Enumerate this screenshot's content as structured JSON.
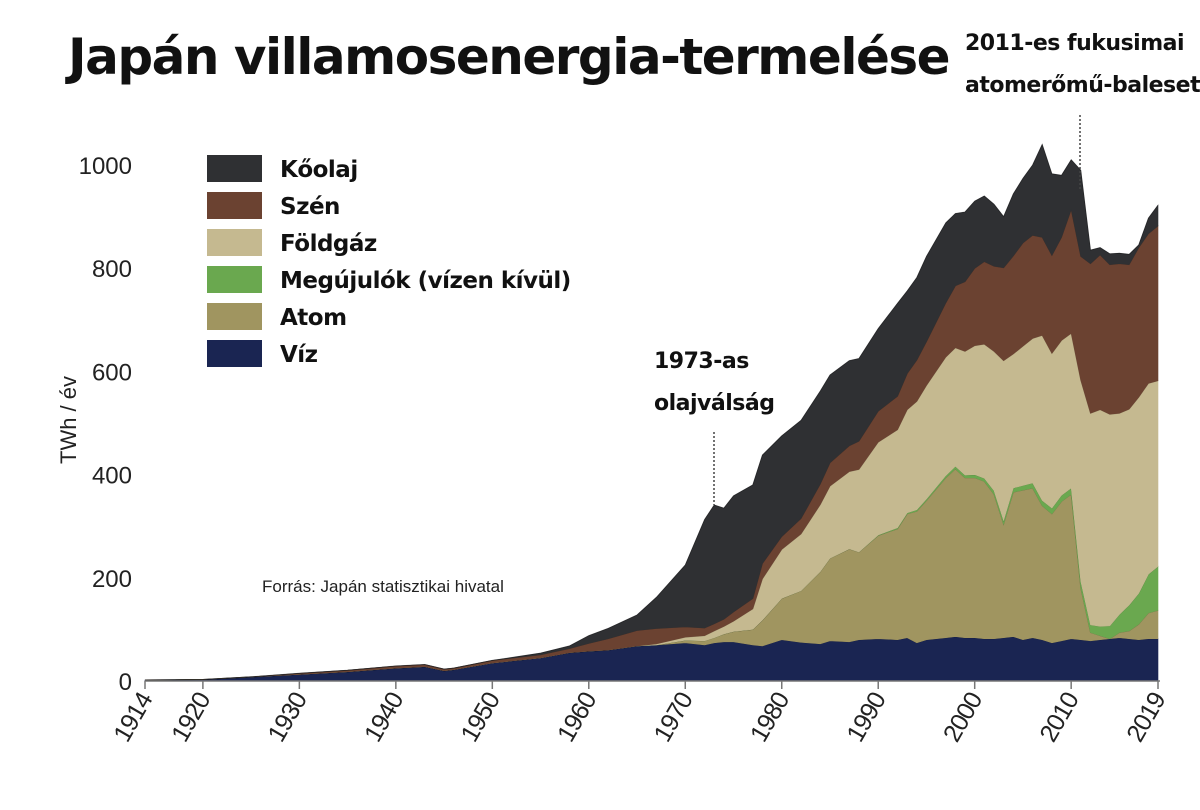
{
  "chart_data": {
    "type": "area",
    "stacked": true,
    "title": "Japán villamosenergia-termelése",
    "ylabel": "TWh / év",
    "xlabel": "",
    "ylim": [
      0,
      1000
    ],
    "xlim": [
      1914,
      2019
    ],
    "yticks": [
      0,
      200,
      400,
      600,
      800,
      1000
    ],
    "xticks": [
      "1914",
      "1920",
      "1930",
      "1940",
      "1950",
      "1960",
      "1970",
      "1980",
      "1990",
      "2000",
      "2010",
      "2019"
    ],
    "source": "Forrás: Japán statisztikai hivatal",
    "x": [
      1914,
      1920,
      1925,
      1930,
      1935,
      1940,
      1943,
      1945,
      1946,
      1950,
      1955,
      1958,
      1960,
      1962,
      1965,
      1967,
      1970,
      1972,
      1973,
      1974,
      1975,
      1977,
      1978,
      1980,
      1982,
      1984,
      1985,
      1987,
      1988,
      1990,
      1992,
      1993,
      1994,
      1995,
      1997,
      1998,
      1999,
      2000,
      2001,
      2002,
      2003,
      2004,
      2005,
      2006,
      2007,
      2008,
      2009,
      2010,
      2011,
      2012,
      2013,
      2014,
      2015,
      2016,
      2017,
      2018,
      2019
    ],
    "series": [
      {
        "name": "Víz",
        "color": "#1a2552",
        "values": [
          2,
          3,
          8,
          13,
          18,
          25,
          28,
          20,
          22,
          35,
          45,
          55,
          58,
          60,
          68,
          70,
          74,
          70,
          74,
          76,
          76,
          70,
          68,
          80,
          75,
          72,
          78,
          76,
          80,
          82,
          80,
          84,
          74,
          80,
          84,
          86,
          84,
          84,
          82,
          82,
          84,
          86,
          80,
          84,
          80,
          74,
          78,
          82,
          80,
          78,
          80,
          82,
          84,
          82,
          80,
          82,
          82
        ]
      },
      {
        "name": "Atom",
        "color": "#a09560",
        "values": [
          0,
          0,
          0,
          0,
          0,
          0,
          0,
          0,
          0,
          0,
          0,
          0,
          0,
          0,
          0,
          0,
          5,
          8,
          10,
          15,
          20,
          30,
          50,
          80,
          100,
          140,
          160,
          180,
          170,
          200,
          215,
          240,
          255,
          270,
          310,
          325,
          310,
          310,
          305,
          280,
          220,
          280,
          290,
          290,
          260,
          250,
          270,
          280,
          100,
          16,
          8,
          0,
          10,
          15,
          30,
          50,
          55
        ]
      },
      {
        "name": "Megújulók (vízen kívül)",
        "color": "#6aa84f",
        "values": [
          0,
          0,
          0,
          0,
          0,
          0,
          0,
          0,
          0,
          0,
          0,
          0,
          0,
          0,
          0,
          0,
          0,
          0,
          0,
          0,
          0,
          0,
          0,
          0,
          0,
          0,
          0,
          0,
          0,
          1,
          2,
          2,
          3,
          3,
          4,
          5,
          5,
          6,
          6,
          7,
          7,
          8,
          9,
          10,
          10,
          11,
          12,
          12,
          13,
          15,
          18,
          25,
          35,
          50,
          60,
          75,
          85
        ]
      },
      {
        "name": "Földgáz",
        "color": "#c5b990",
        "values": [
          0,
          0,
          0,
          0,
          0,
          0,
          0,
          0,
          0,
          0,
          0,
          0,
          0,
          0,
          0,
          2,
          6,
          10,
          13,
          15,
          20,
          40,
          80,
          95,
          110,
          130,
          140,
          150,
          160,
          180,
          190,
          200,
          210,
          220,
          230,
          230,
          240,
          250,
          260,
          270,
          310,
          260,
          270,
          280,
          320,
          300,
          300,
          300,
          390,
          410,
          420,
          410,
          390,
          380,
          380,
          370,
          360
        ]
      },
      {
        "name": "Szén",
        "color": "#6b4231",
        "values": [
          0,
          0,
          0,
          2,
          3,
          4,
          4,
          3,
          3,
          5,
          6,
          8,
          15,
          22,
          30,
          30,
          20,
          15,
          14,
          14,
          18,
          20,
          30,
          25,
          30,
          40,
          45,
          50,
          55,
          60,
          65,
          70,
          80,
          85,
          105,
          120,
          135,
          150,
          160,
          165,
          180,
          190,
          200,
          200,
          190,
          190,
          200,
          240,
          240,
          290,
          300,
          290,
          290,
          280,
          290,
          290,
          300
        ]
      },
      {
        "name": "Kőolaj",
        "color": "#2f3033",
        "values": [
          0,
          0,
          0,
          0,
          0,
          0,
          0,
          0,
          0,
          0,
          3,
          5,
          15,
          20,
          30,
          60,
          120,
          210,
          230,
          215,
          225,
          220,
          210,
          195,
          190,
          180,
          170,
          165,
          160,
          160,
          180,
          160,
          160,
          165,
          155,
          140,
          135,
          130,
          127,
          120,
          99,
          120,
          125,
          136,
          180,
          158,
          120,
          96,
          167,
          26,
          14,
          21,
          20,
          20,
          5,
          30,
          40
        ]
      }
    ],
    "legend": [
      "Kőolaj",
      "Szén",
      "Földgáz",
      "Megújulók (vízen kívül)",
      "Atom",
      "Víz"
    ],
    "legend_position": "top-left",
    "annotations": [
      {
        "year": 1973,
        "lines": [
          "1973-as",
          "olajválság"
        ]
      },
      {
        "year": 2011,
        "lines": [
          "2011-es fukusimai",
          "atomerőmű-baleset"
        ]
      }
    ]
  }
}
